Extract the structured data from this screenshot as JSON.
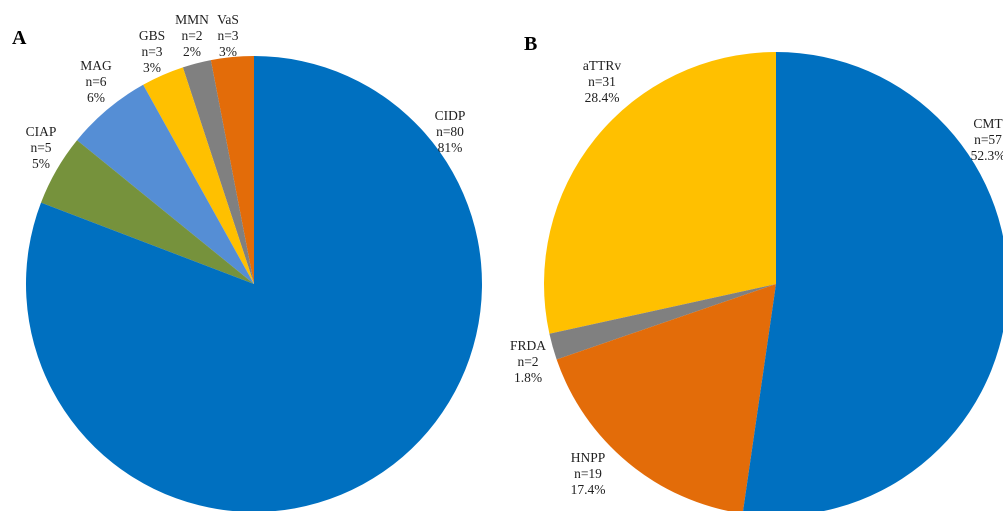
{
  "chart_data": [
    {
      "type": "pie",
      "panel": "A",
      "slices": [
        {
          "name": "CIDP",
          "n": "n=80",
          "pct": "81%",
          "value": 80,
          "color": "#0070C0"
        },
        {
          "name": "CIAP",
          "n": "n=5",
          "pct": "5%",
          "value": 5,
          "color": "#76923C"
        },
        {
          "name": "MAG",
          "n": "n=6",
          "pct": "6%",
          "value": 6,
          "color": "#558ED5"
        },
        {
          "name": "GBS",
          "n": "n=3",
          "pct": "3%",
          "value": 3,
          "color": "#FFC000"
        },
        {
          "name": "MMN",
          "n": "n=2",
          "pct": "2%",
          "value": 2,
          "color": "#808080"
        },
        {
          "name": "VaS",
          "n": "n=3",
          "pct": "3%",
          "value": 3,
          "color": "#E36C09"
        }
      ]
    },
    {
      "type": "pie",
      "panel": "B",
      "slices": [
        {
          "name": "CMT",
          "n": "n=57",
          "pct": "52.3%",
          "value": 57,
          "color": "#0070C0"
        },
        {
          "name": "HNPP",
          "n": "n=19",
          "pct": "17.4%",
          "value": 19,
          "color": "#E36C09"
        },
        {
          "name": "FRDA",
          "n": "n=2",
          "pct": "1.8%",
          "value": 2,
          "color": "#808080"
        },
        {
          "name": "aTTRv",
          "n": "n=31",
          "pct": "28.4%",
          "value": 31,
          "color": "#FFC000"
        }
      ]
    }
  ]
}
